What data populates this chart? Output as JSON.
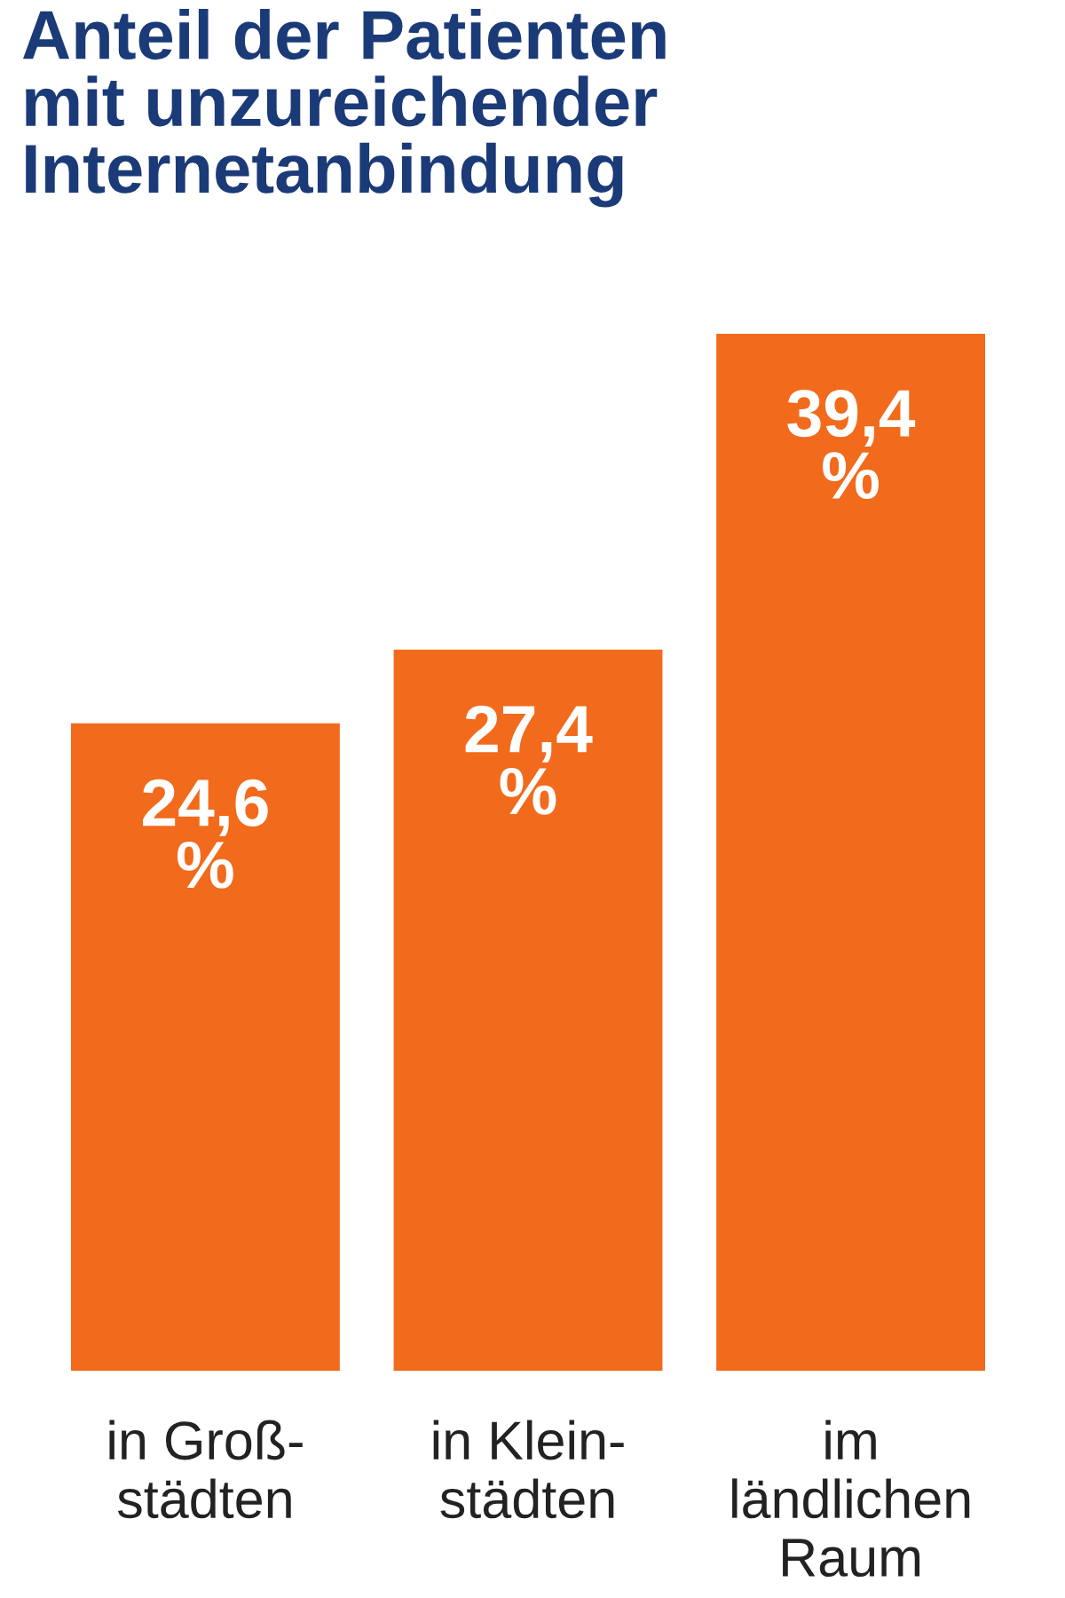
{
  "chart_data": {
    "type": "bar",
    "title": "Anteil der Patienten\nmit unzureichender\nInternetanbindung",
    "categories": [
      "in Groß-\nstädten",
      "in Klein-\nstädten",
      "im\nländlichen\nRaum"
    ],
    "values": [
      24.6,
      27.4,
      39.4
    ],
    "value_labels": [
      "24,6\n%",
      "27,4\n%",
      "39,4\n%"
    ],
    "color": "#f26a1b",
    "grid": false,
    "legend": false
  }
}
